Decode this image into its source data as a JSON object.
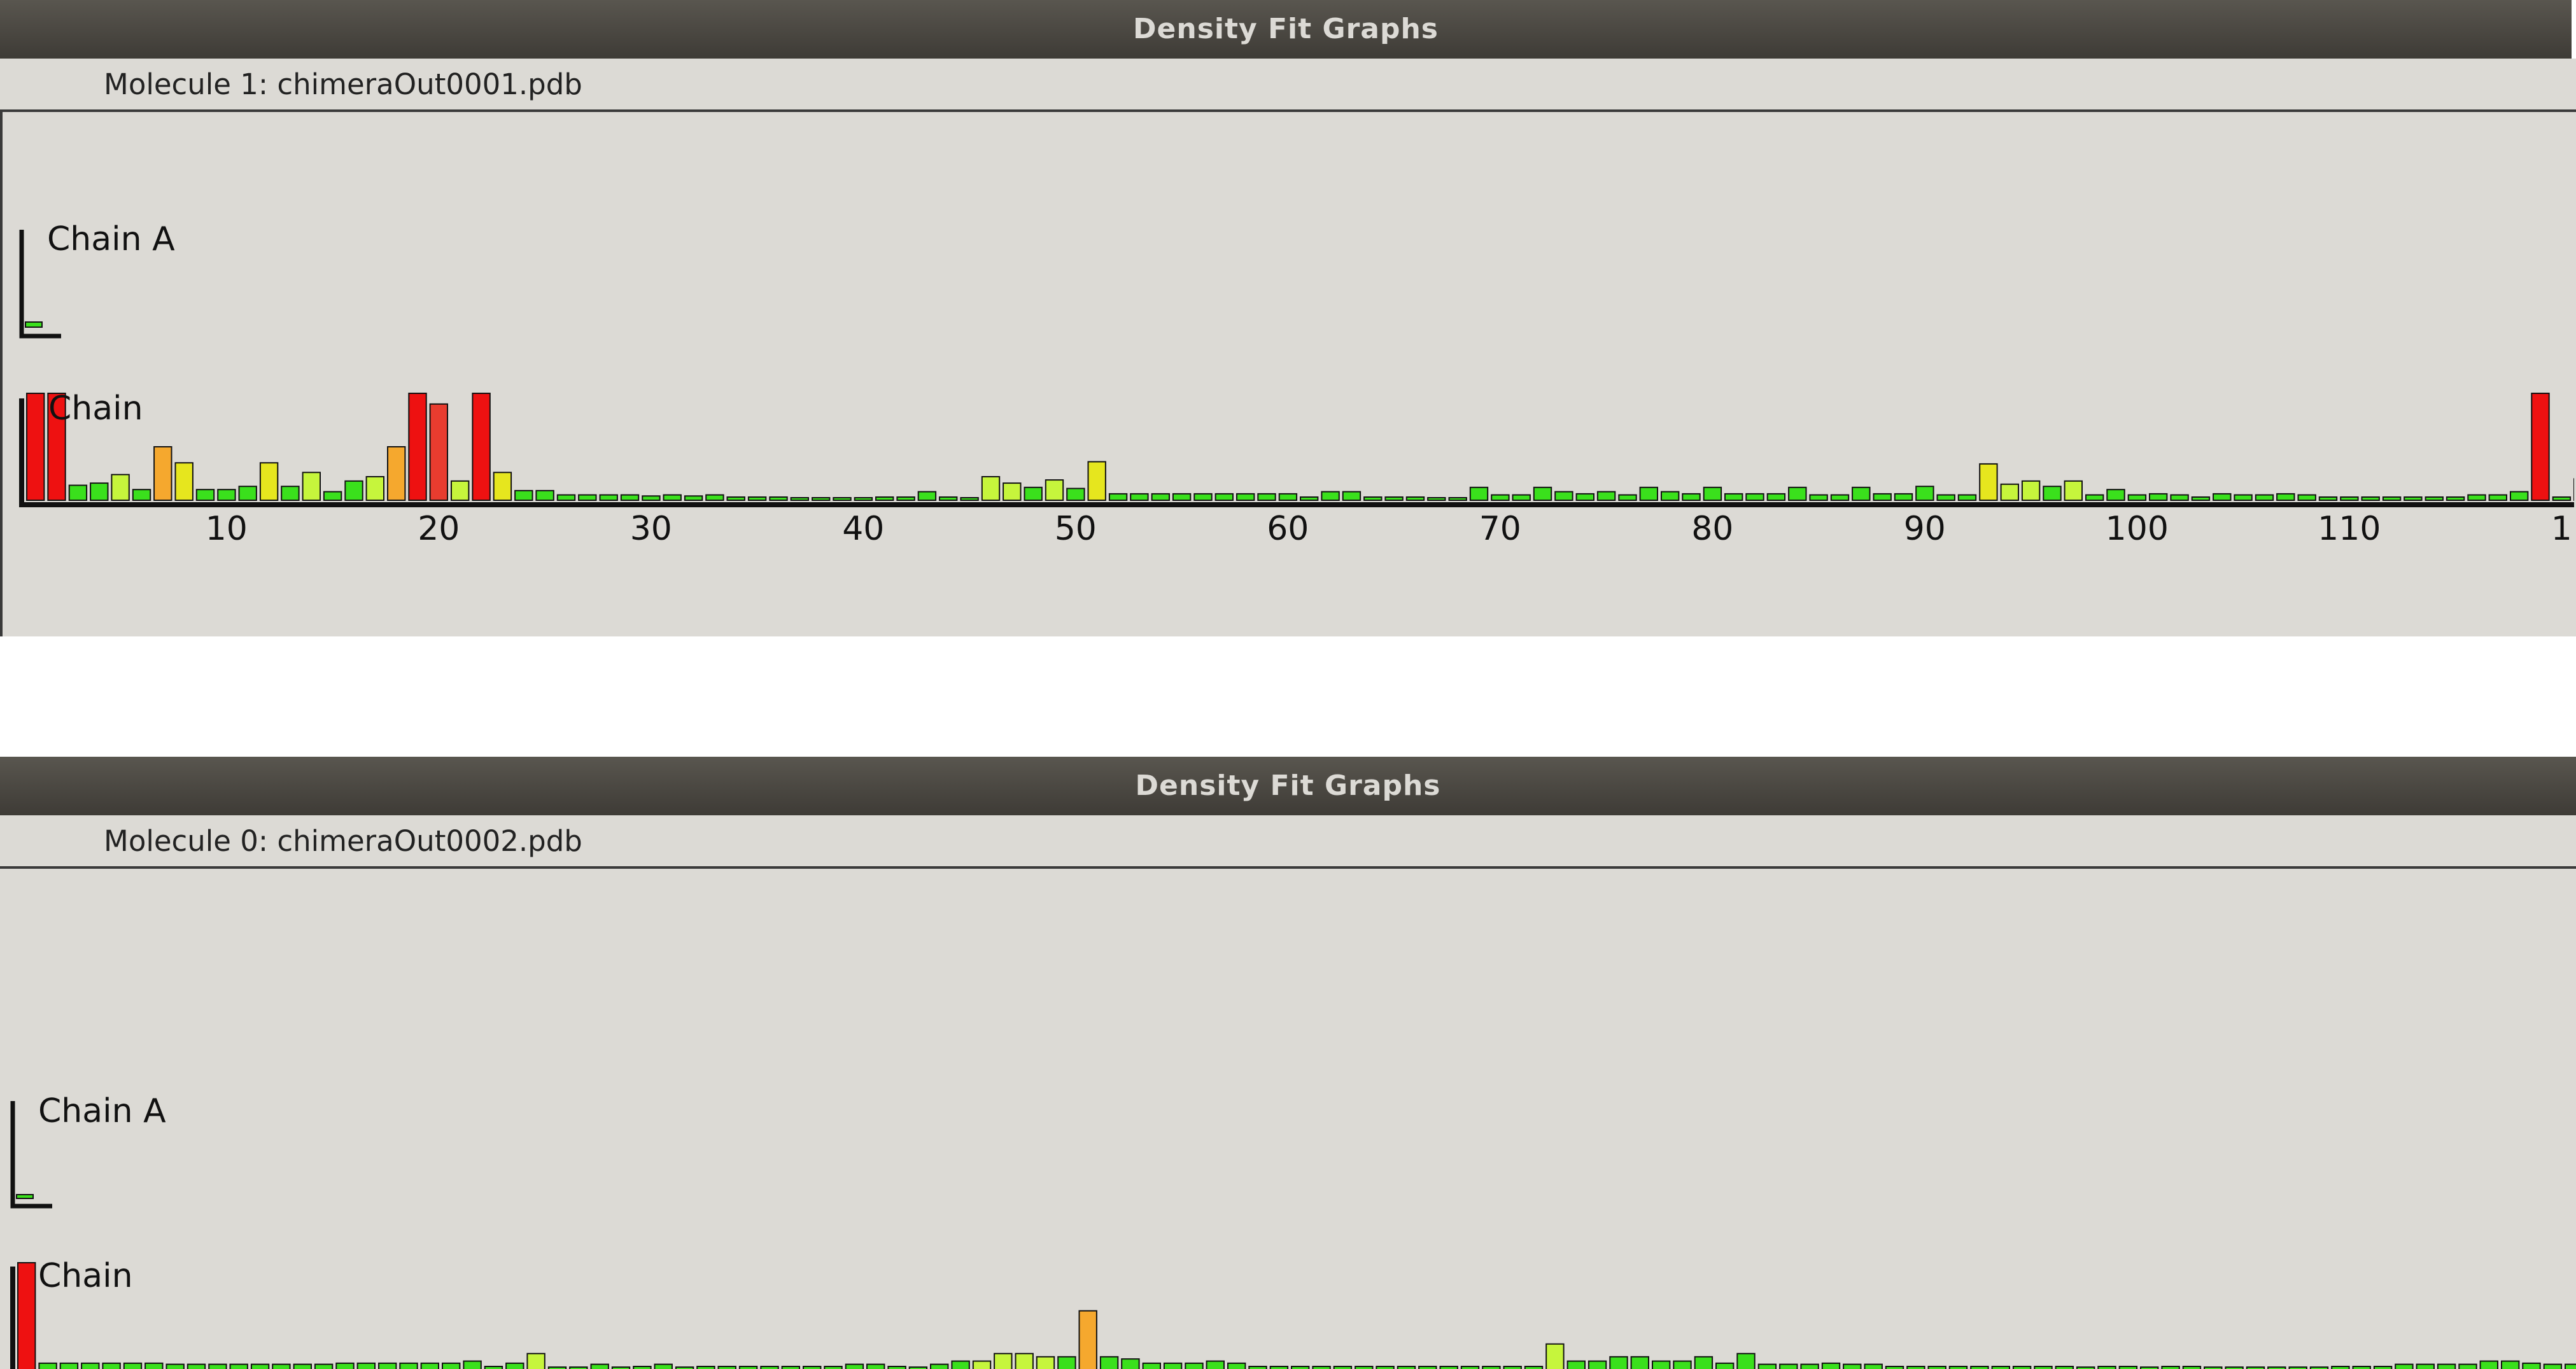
{
  "windows": [
    {
      "title": "Density Fit Graphs",
      "molecule": "Molecule 1: chimeraOut0001.pdb",
      "chains": [
        "Chain A",
        "Chain"
      ]
    },
    {
      "title": "Density Fit Graphs",
      "molecule": "Molecule 0: chimeraOut0002.pdb",
      "chains": [
        "Chain A",
        "Chain"
      ]
    }
  ],
  "colors": {
    "red": "#ee1111",
    "orange_red": "#e83c2f",
    "orange": "#f5a82e",
    "yellow": "#e6e61e",
    "yellow_green": "#c6f53c",
    "green": "#3ae01c",
    "background": "#dcdad5"
  },
  "chart_data": [
    {
      "type": "bar",
      "name": "Molecule 1 residue density fit",
      "x_ticks": [
        10,
        20,
        30,
        40,
        50,
        60,
        70,
        80,
        90,
        100,
        110,
        "1"
      ],
      "xlim": [
        1,
        121
      ],
      "values": [
        10,
        10,
        1.4,
        1.6,
        2.4,
        1,
        5,
        3.5,
        1,
        1,
        1.3,
        3.5,
        1.3,
        2.6,
        0.8,
        1.8,
        2.2,
        5,
        10,
        9,
        1.8,
        10,
        2.6,
        0.9,
        0.9,
        0.5,
        0.5,
        0.5,
        0.5,
        0.4,
        0.5,
        0.4,
        0.5,
        0.3,
        0.3,
        0.3,
        0.1,
        0.1,
        0.1,
        0.1,
        0.3,
        0.3,
        0.8,
        0.3,
        0.1,
        2.2,
        1.6,
        1.2,
        1.9,
        1.1,
        3.6,
        0.6,
        0.6,
        0.6,
        0.6,
        0.6,
        0.6,
        0.6,
        0.6,
        0.6,
        0.3,
        0.8,
        0.8,
        0.3,
        0.3,
        0.3,
        0.1,
        0.1,
        1.2,
        0.5,
        0.5,
        1.2,
        0.8,
        0.6,
        0.8,
        0.5,
        1.2,
        0.8,
        0.6,
        1.2,
        0.6,
        0.6,
        0.6,
        1.2,
        0.5,
        0.5,
        1.2,
        0.6,
        0.6,
        1.3,
        0.5,
        0.5,
        3.4,
        1.5,
        1.8,
        1.3,
        1.8,
        0.5,
        1,
        0.5,
        0.6,
        0.5,
        0.3,
        0.6,
        0.5,
        0.5,
        0.6,
        0.5,
        0.3,
        0.3,
        0.3,
        0.3,
        0.3,
        0.3,
        0.3,
        0.5,
        0.5,
        0.8,
        10,
        0.3,
        2,
        0.5
      ],
      "levels": [
        "R",
        "R",
        "G",
        "G",
        "LG",
        "G",
        "O",
        "Y",
        "G",
        "G",
        "G",
        "Y",
        "G",
        "LG",
        "G",
        "G",
        "LG",
        "O",
        "R",
        "RO",
        "LG",
        "R",
        "Y",
        "G",
        "G",
        "G",
        "G",
        "G",
        "G",
        "G",
        "G",
        "G",
        "G",
        "G",
        "G",
        "G",
        "G",
        "G",
        "G",
        "G",
        "G",
        "G",
        "G",
        "G",
        "G",
        "LG",
        "LG",
        "G",
        "LG",
        "G",
        "Y",
        "G",
        "G",
        "G",
        "G",
        "G",
        "G",
        "G",
        "G",
        "G",
        "G",
        "G",
        "G",
        "G",
        "G",
        "G",
        "G",
        "G",
        "G",
        "G",
        "G",
        "G",
        "G",
        "G",
        "G",
        "G",
        "G",
        "G",
        "G",
        "G",
        "G",
        "G",
        "G",
        "G",
        "G",
        "G",
        "G",
        "G",
        "G",
        "G",
        "G",
        "G",
        "Y",
        "LG",
        "LG",
        "G",
        "LG",
        "G",
        "G",
        "G",
        "G",
        "G",
        "G",
        "G",
        "G",
        "G",
        "G",
        "G",
        "G",
        "G",
        "G",
        "G",
        "G",
        "G",
        "G",
        "G",
        "G",
        "G",
        "R",
        "G",
        "G",
        "G"
      ]
    },
    {
      "type": "bar",
      "name": "Molecule 0 residue density fit",
      "x_ticks": [
        10,
        20,
        30,
        40,
        50,
        60,
        70,
        80,
        90,
        100,
        110,
        "1"
      ],
      "xlim": [
        1,
        121
      ],
      "values": [
        10,
        0.6,
        0.6,
        0.6,
        0.6,
        0.6,
        0.6,
        0.5,
        0.5,
        0.5,
        0.5,
        0.5,
        0.5,
        0.5,
        0.5,
        0.6,
        0.6,
        0.6,
        0.6,
        0.6,
        0.6,
        0.8,
        0.3,
        0.6,
        1.5,
        0.1,
        0.1,
        0.5,
        0.1,
        0.3,
        0.5,
        0.1,
        0.3,
        0.3,
        0.3,
        0.3,
        0.3,
        0.3,
        0.3,
        0.5,
        0.5,
        0.3,
        0.1,
        0.5,
        0.8,
        0.8,
        1.5,
        1.5,
        1.2,
        1.2,
        5.5,
        1.2,
        1,
        0.6,
        0.6,
        0.6,
        0.8,
        0.6,
        0.3,
        0.3,
        0.3,
        0.3,
        0.3,
        0.3,
        0.3,
        0.3,
        0.3,
        0.3,
        0.3,
        0.3,
        0.3,
        0.3,
        2.4,
        0.8,
        0.8,
        1.2,
        1.2,
        0.8,
        0.8,
        1.2,
        0.6,
        1.5,
        0.5,
        0.5,
        0.5,
        0.6,
        0.5,
        0.5,
        0.3,
        0.3,
        0.3,
        0.3,
        0.3,
        0.3,
        0.3,
        0.3,
        0.3,
        0.1,
        0.3,
        0.3,
        0.1,
        0.3,
        0.3,
        0.1,
        0.1,
        0.1,
        0.1,
        0.1,
        0.1,
        0.3,
        0.3,
        0.3,
        0.5,
        0.5,
        0.5,
        0.5,
        0.8,
        0.8,
        0.6,
        0.5,
        0.5
      ],
      "levels": [
        "R",
        "G",
        "G",
        "G",
        "G",
        "G",
        "G",
        "G",
        "G",
        "G",
        "G",
        "G",
        "G",
        "G",
        "G",
        "G",
        "G",
        "G",
        "G",
        "G",
        "G",
        "G",
        "G",
        "G",
        "LG",
        "G",
        "G",
        "G",
        "G",
        "G",
        "G",
        "G",
        "G",
        "G",
        "G",
        "G",
        "G",
        "G",
        "G",
        "G",
        "G",
        "G",
        "G",
        "G",
        "G",
        "LG",
        "LG",
        "LG",
        "LG",
        "G",
        "O",
        "G",
        "G",
        "G",
        "G",
        "G",
        "G",
        "G",
        "G",
        "G",
        "G",
        "G",
        "G",
        "G",
        "G",
        "G",
        "G",
        "G",
        "G",
        "G",
        "G",
        "G",
        "LG",
        "G",
        "G",
        "G",
        "G",
        "G",
        "G",
        "G",
        "G",
        "G",
        "G",
        "G",
        "G",
        "G",
        "G",
        "G",
        "G",
        "G",
        "G",
        "G",
        "G",
        "G",
        "G",
        "G",
        "G",
        "G",
        "G",
        "G",
        "G",
        "G",
        "G",
        "G",
        "G",
        "G",
        "G",
        "G",
        "G",
        "G",
        "G",
        "G",
        "G",
        "G",
        "G",
        "G",
        "G",
        "G",
        "G",
        "G",
        "G"
      ]
    }
  ]
}
